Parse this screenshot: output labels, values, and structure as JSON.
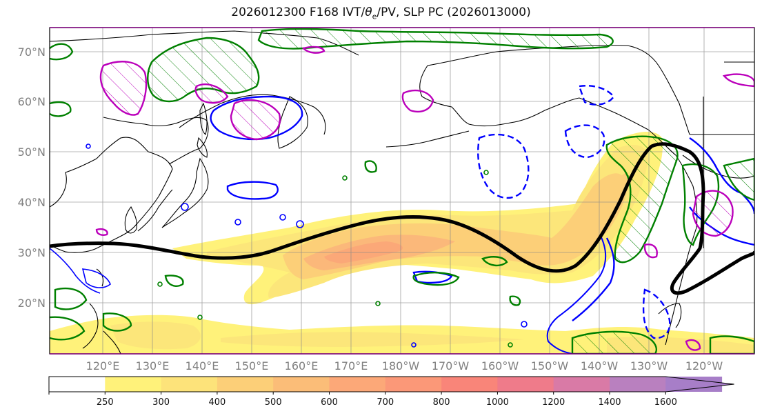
{
  "title": {
    "prefix": "2026012300 F168 IVT/",
    "theta": "θ",
    "theta_sub": "e",
    "suffix": "/PV, SLP PC (2026013000)"
  },
  "lat_labels": [
    "70°N",
    "60°N",
    "50°N",
    "40°N",
    "30°N",
    "20°N"
  ],
  "lon_labels": [
    "120°E",
    "130°E",
    "140°E",
    "150°E",
    "160°E",
    "170°E",
    "180°W",
    "170°W",
    "160°W",
    "150°W",
    "140°W",
    "130°W",
    "120°W"
  ],
  "colorbar": {
    "ticks": [
      "250",
      "300",
      "400",
      "500",
      "600",
      "700",
      "800",
      "1000",
      "1200",
      "1400",
      "1600"
    ],
    "colors": [
      "#ffffff",
      "#fff27a",
      "#fde37a",
      "#fccf78",
      "#fbbd78",
      "#fca878",
      "#fb9878",
      "#f98579",
      "#ef7b8a",
      "#d97aa6",
      "#b980bf",
      "#a77ec8"
    ]
  },
  "map_colors": {
    "ocean": "#ffffff",
    "land_outline": "#000000",
    "ivt_light": "#fff27a",
    "ivt_mid": "#fccf78",
    "ivt_core": "#fbb178",
    "pv_green": "#008000",
    "theta_blue": "#0000ff",
    "slp_magenta": "#bb00bb",
    "jet_line": "#000000",
    "grid": "#888888"
  }
}
